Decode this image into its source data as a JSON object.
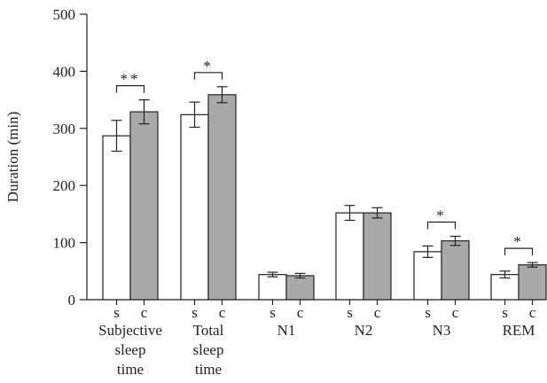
{
  "chart_data": {
    "type": "bar",
    "title": "",
    "xlabel": "",
    "ylabel": "Duration (min)",
    "ylim": [
      0,
      500
    ],
    "yticks": [
      0,
      100,
      200,
      300,
      400,
      500
    ],
    "grid": false,
    "legend": "none",
    "bar_labels": [
      "s",
      "c"
    ],
    "colors": {
      "s": "#ffffff",
      "c": "#a9a9a9",
      "stroke": "#222222"
    },
    "groups": [
      {
        "label": [
          "Subjective",
          "sleep",
          "time"
        ],
        "s": 287,
        "s_err": 27,
        "c": 329,
        "c_err": 21,
        "sig": "**"
      },
      {
        "label": [
          "Total",
          "sleep",
          "time"
        ],
        "s": 324,
        "s_err": 22,
        "c": 359,
        "c_err": 14,
        "sig": "*"
      },
      {
        "label": [
          "N1"
        ],
        "s": 44,
        "s_err": 4,
        "c": 42,
        "c_err": 4,
        "sig": ""
      },
      {
        "label": [
          "N2"
        ],
        "s": 152,
        "s_err": 13,
        "c": 152,
        "c_err": 9,
        "sig": ""
      },
      {
        "label": [
          "N3"
        ],
        "s": 84,
        "s_err": 10,
        "c": 103,
        "c_err": 8,
        "sig": "*"
      },
      {
        "label": [
          "REM"
        ],
        "s": 44,
        "s_err": 6,
        "c": 61,
        "c_err": 4,
        "sig": "*"
      }
    ]
  }
}
